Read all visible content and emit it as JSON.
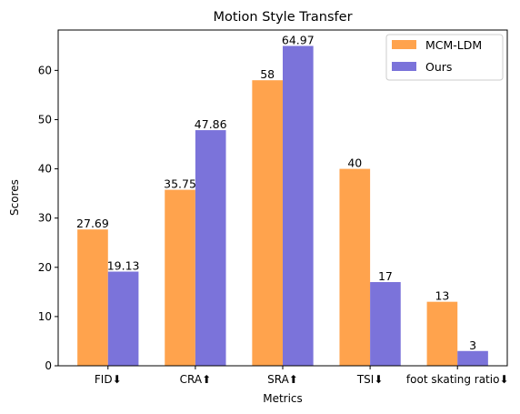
{
  "chart_data": {
    "type": "bar",
    "title": "Motion Style Transfer",
    "xlabel": "Metrics",
    "ylabel": "Scores",
    "categories": [
      "FID⬇",
      "CRA⬆",
      "SRA⬆",
      "TSI⬇",
      "foot skating ratio⬇"
    ],
    "series": [
      {
        "name": "MCM-LDM",
        "color": "#ffa34d",
        "values": [
          27.69,
          35.75,
          58,
          40,
          13
        ],
        "labels": [
          "27.69",
          "35.75",
          "58",
          "40",
          "13"
        ]
      },
      {
        "name": "Ours",
        "color": "#7b73da",
        "values": [
          19.13,
          47.86,
          64.97,
          17,
          3
        ],
        "labels": [
          "19.13",
          "47.86",
          "64.97",
          "17",
          "3"
        ]
      }
    ],
    "ylim": [
      0,
      68.2
    ],
    "yticks": [
      0,
      10,
      20,
      30,
      40,
      50,
      60
    ],
    "grid": false,
    "legend_position": "top-right"
  }
}
